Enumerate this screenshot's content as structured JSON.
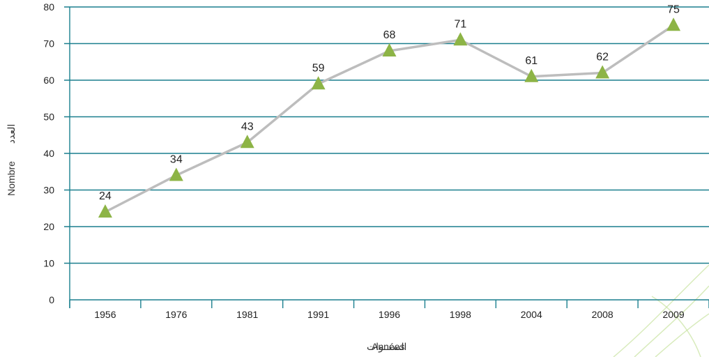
{
  "chart_data": {
    "type": "line",
    "categories": [
      "1956",
      "1976",
      "1981",
      "1991",
      "1996",
      "1998",
      "2004",
      "2008",
      "2009"
    ],
    "values": [
      24,
      34,
      43,
      59,
      68,
      71,
      61,
      62,
      75
    ],
    "data_labels": [
      "24",
      "34",
      "43",
      "59",
      "68",
      "71",
      "61",
      "62",
      "75"
    ],
    "ylim": [
      0,
      80
    ],
    "yticks": [
      0,
      10,
      20,
      30,
      40,
      50,
      60,
      70,
      80
    ],
    "ytick_labels": [
      "0",
      "10",
      "20",
      "30",
      "40",
      "50",
      "60",
      "70",
      "80"
    ],
    "xlabel_ar": "السنــوات",
    "xlabel_fr": "Années",
    "ylabel_ar": "العدد",
    "ylabel_fr": "Nombre",
    "grid": true,
    "colors": {
      "gridline": "#1a7f8e",
      "line": "#bdbdbd",
      "marker": "#8db446",
      "decoration": "#c8e3a0"
    }
  }
}
